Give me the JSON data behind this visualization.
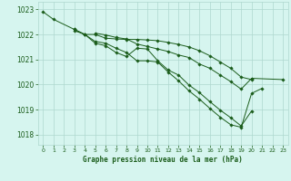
{
  "xlabel": "Graphe pression niveau de la mer (hPa)",
  "xlim": [
    -0.5,
    23.5
  ],
  "ylim": [
    1017.6,
    1023.3
  ],
  "yticks": [
    1018,
    1019,
    1020,
    1021,
    1022,
    1023
  ],
  "xticks": [
    0,
    1,
    2,
    3,
    4,
    5,
    6,
    7,
    8,
    9,
    10,
    11,
    12,
    13,
    14,
    15,
    16,
    17,
    18,
    19,
    20,
    21,
    22,
    23
  ],
  "bg_color": "#d6f5ef",
  "line_color": "#1a5c1a",
  "grid_color": "#aed8cf",
  "series": [
    {
      "x": [
        0,
        1,
        3,
        4,
        5,
        6,
        7,
        8,
        9,
        10,
        11,
        12,
        13,
        14,
        15,
        16,
        17,
        18,
        19,
        20
      ],
      "y": [
        1022.9,
        1022.6,
        1022.2,
        1022.0,
        1022.0,
        1021.85,
        1021.82,
        1021.8,
        1021.8,
        1021.78,
        1021.75,
        1021.68,
        1021.6,
        1021.5,
        1021.35,
        1021.15,
        1020.9,
        1020.65,
        1020.3,
        1020.2
      ]
    },
    {
      "x": [
        3,
        4,
        5,
        6,
        7,
        8,
        9,
        10,
        11,
        12,
        13,
        14,
        15,
        16,
        17,
        18,
        19,
        20,
        21
      ],
      "y": [
        1022.2,
        1022.0,
        1021.72,
        1021.65,
        1021.45,
        1021.28,
        1020.95,
        1020.95,
        1020.9,
        1020.5,
        1020.15,
        1019.75,
        1019.42,
        1019.05,
        1018.7,
        1018.4,
        1018.3,
        1019.65,
        1019.85
      ]
    },
    {
      "x": [
        3,
        4,
        5,
        6,
        7,
        8,
        9,
        10,
        11,
        12,
        13,
        14,
        15,
        16,
        17,
        18,
        19,
        20
      ],
      "y": [
        1022.15,
        1022.0,
        1021.65,
        1021.55,
        1021.28,
        1021.12,
        1021.45,
        1021.42,
        1020.95,
        1020.58,
        1020.38,
        1019.98,
        1019.68,
        1019.32,
        1018.98,
        1018.68,
        1018.35,
        1018.95
      ]
    },
    {
      "x": [
        5,
        6,
        7,
        8,
        9,
        10,
        11,
        12,
        13,
        14,
        15,
        16,
        17,
        18,
        19,
        20,
        23
      ],
      "y": [
        1022.05,
        1021.98,
        1021.88,
        1021.82,
        1021.62,
        1021.52,
        1021.42,
        1021.32,
        1021.18,
        1021.08,
        1020.82,
        1020.65,
        1020.38,
        1020.12,
        1019.82,
        1020.25,
        1020.2
      ]
    }
  ]
}
